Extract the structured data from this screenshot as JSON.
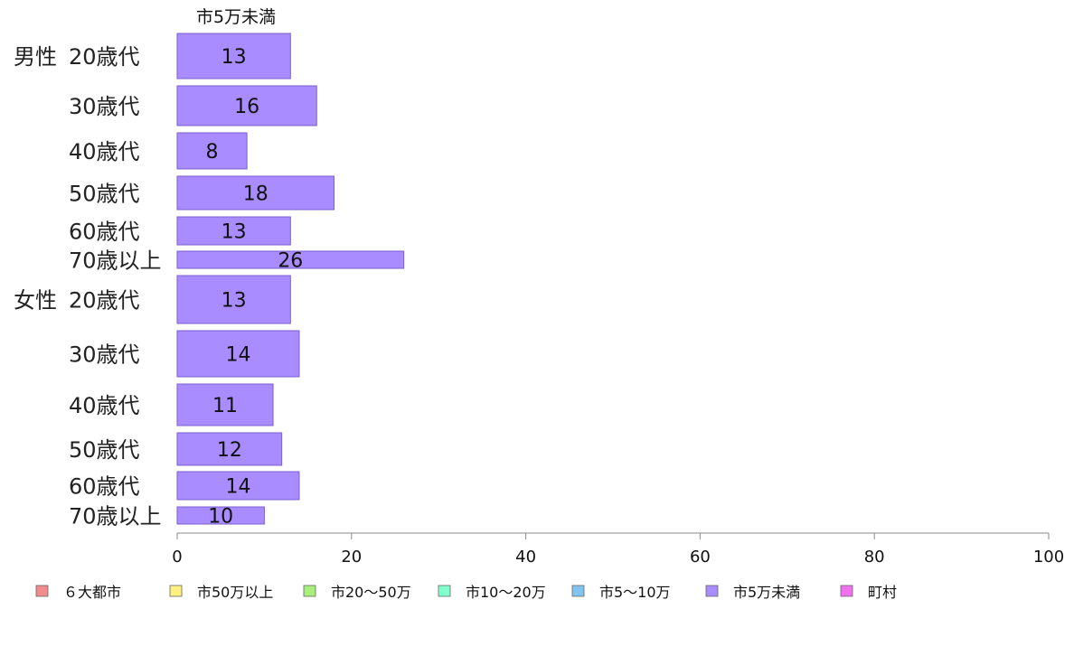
{
  "chart_data": {
    "type": "bar",
    "orientation": "horizontal",
    "series_header": "市5万未満",
    "groups": [
      {
        "label": "男性",
        "categories": [
          "20歳代",
          "30歳代",
          "40歳代",
          "50歳代",
          "60歳代",
          "70歳以上"
        ],
        "values": [
          13,
          16,
          8,
          18,
          13,
          26
        ]
      },
      {
        "label": "女性",
        "categories": [
          "20歳代",
          "30歳代",
          "40歳代",
          "50歳代",
          "60歳代",
          "70歳以上"
        ],
        "values": [
          13,
          14,
          11,
          12,
          14,
          10
        ]
      }
    ],
    "xlim": [
      0,
      100
    ],
    "x_ticks": [
      0,
      20,
      40,
      60,
      80,
      100
    ],
    "grid": false,
    "legend_position": "bottom",
    "legend": [
      {
        "label": "６大都市",
        "color": "#f08c8c"
      },
      {
        "label": "市50万以上",
        "color": "#fff080"
      },
      {
        "label": "市20～50万",
        "color": "#a8f07c"
      },
      {
        "label": "市10～20万",
        "color": "#80ffcc"
      },
      {
        "label": "市5～10万",
        "color": "#80c4f0"
      },
      {
        "label": "市5万未満",
        "color": "#a98cff"
      },
      {
        "label": "町村",
        "color": "#f070f0"
      }
    ],
    "bar_color": "#a98cff",
    "bar_border_color": "#7a5fcf"
  }
}
